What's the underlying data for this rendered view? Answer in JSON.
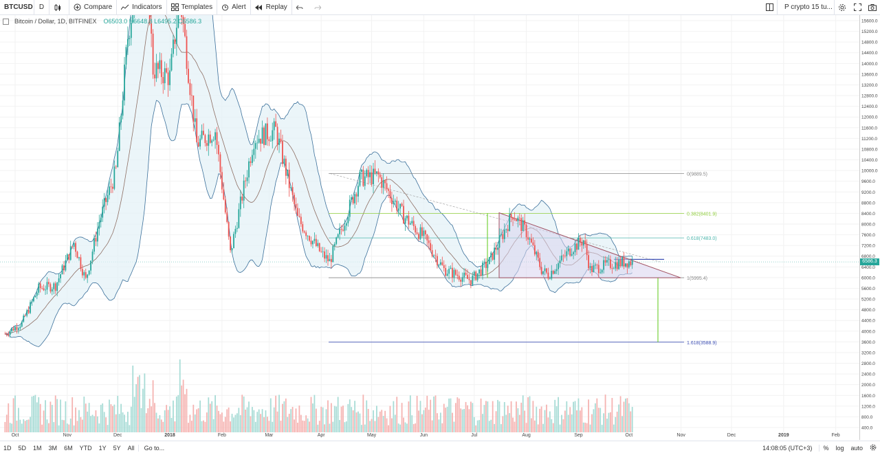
{
  "toolbar": {
    "symbol": "BTCUSD",
    "interval": "D",
    "compare_label": "Compare",
    "indicators_label": "Indicators",
    "templates_label": "Templates",
    "alert_label": "Alert",
    "replay_label": "Replay",
    "layout_name": "P crypto 15 tu..."
  },
  "legend": {
    "title": "Bitcoin / Dollar, 1D, BITFINEX",
    "ohlc": "O6503.0 H6648.8 L6495.2 C6586.3"
  },
  "colors": {
    "up": "#26a69a",
    "down": "#ef5350",
    "band": "#3a6f9a",
    "fib_gray": "#888888",
    "fib_green": "#8fce3b",
    "fib_teal": "#4db6ac",
    "fib_blue": "#3f51b5",
    "triangle_fill": "#d9d4ef",
    "triangle_stroke": "#a05060"
  },
  "chart_data": {
    "type": "candlestick",
    "symbol": "Bitcoin / Dollar, 1D, BITFINEX",
    "last_price": 6586.3,
    "ylim": [
      400,
      15600
    ],
    "price_ticks": [
      15600,
      15200,
      14800,
      14400,
      14000,
      13600,
      13200,
      12800,
      12400,
      12000,
      11600,
      11200,
      10800,
      10400,
      10000,
      9600,
      9200,
      8800,
      8400,
      8000,
      7600,
      7200,
      6800,
      6400,
      6000,
      5600,
      5200,
      4800,
      4400,
      4000,
      3600,
      3200,
      2800,
      2400,
      2000,
      1600,
      1200,
      800,
      400
    ],
    "x_ticks": [
      "Oct",
      "Nov",
      "Dec",
      "2018",
      "Feb",
      "Mar",
      "Apr",
      "May",
      "Jun",
      "Jul",
      "Aug",
      "Sep",
      "Oct",
      "Nov",
      "Dec",
      "2019",
      "Feb"
    ],
    "price_path": [
      {
        "date": "2017-09-25",
        "price": 3900
      },
      {
        "date": "2017-10-05",
        "price": 4300
      },
      {
        "date": "2017-10-15",
        "price": 5600
      },
      {
        "date": "2017-10-25",
        "price": 5700
      },
      {
        "date": "2017-11-05",
        "price": 7300
      },
      {
        "date": "2017-11-12",
        "price": 5900
      },
      {
        "date": "2017-11-20",
        "price": 8100
      },
      {
        "date": "2017-11-30",
        "price": 10000
      },
      {
        "date": "2017-12-07",
        "price": 15000
      },
      {
        "date": "2017-12-12",
        "price": 17000
      },
      {
        "date": "2017-12-17",
        "price": 19200
      },
      {
        "date": "2017-12-22",
        "price": 13800
      },
      {
        "date": "2018-01-01",
        "price": 13500
      },
      {
        "date": "2018-01-07",
        "price": 16500
      },
      {
        "date": "2018-01-17",
        "price": 11000
      },
      {
        "date": "2018-01-28",
        "price": 11500
      },
      {
        "date": "2018-02-06",
        "price": 6900
      },
      {
        "date": "2018-02-20",
        "price": 11200
      },
      {
        "date": "2018-03-05",
        "price": 11500
      },
      {
        "date": "2018-03-18",
        "price": 8200
      },
      {
        "date": "2018-04-01",
        "price": 6900
      },
      {
        "date": "2018-04-06",
        "price": 6600
      },
      {
        "date": "2018-04-24",
        "price": 9700
      },
      {
        "date": "2018-05-05",
        "price": 9800
      },
      {
        "date": "2018-05-20",
        "price": 8300
      },
      {
        "date": "2018-06-01",
        "price": 7500
      },
      {
        "date": "2018-06-13",
        "price": 6300
      },
      {
        "date": "2018-06-29",
        "price": 5900
      },
      {
        "date": "2018-07-10",
        "price": 6600
      },
      {
        "date": "2018-07-24",
        "price": 8400
      },
      {
        "date": "2018-08-01",
        "price": 7700
      },
      {
        "date": "2018-08-10",
        "price": 6300
      },
      {
        "date": "2018-08-14",
        "price": 6100
      },
      {
        "date": "2018-08-28",
        "price": 7100
      },
      {
        "date": "2018-09-04",
        "price": 7400
      },
      {
        "date": "2018-09-08",
        "price": 6300
      },
      {
        "date": "2018-09-20",
        "price": 6500
      },
      {
        "date": "2018-10-01",
        "price": 6600
      },
      {
        "date": "2018-10-04",
        "price": 6586
      }
    ],
    "fib_levels": [
      {
        "label": "0(9889.5)",
        "price": 9889.5
      },
      {
        "label": "0.382(8401.9)",
        "price": 8401.9
      },
      {
        "label": "0.618(7483.0)",
        "price": 7483.0
      },
      {
        "label": "1(5995.4)",
        "price": 5995.4
      },
      {
        "label": "1.618(3588.9)",
        "price": 3588.9
      }
    ]
  },
  "bottombar": {
    "ranges": [
      "1D",
      "5D",
      "1M",
      "3M",
      "6M",
      "YTD",
      "1Y",
      "5Y",
      "All"
    ],
    "goto_label": "Go to...",
    "time": "14:08:05 (UTC+3)",
    "percent_label": "%",
    "log_label": "log",
    "auto_label": "auto"
  }
}
